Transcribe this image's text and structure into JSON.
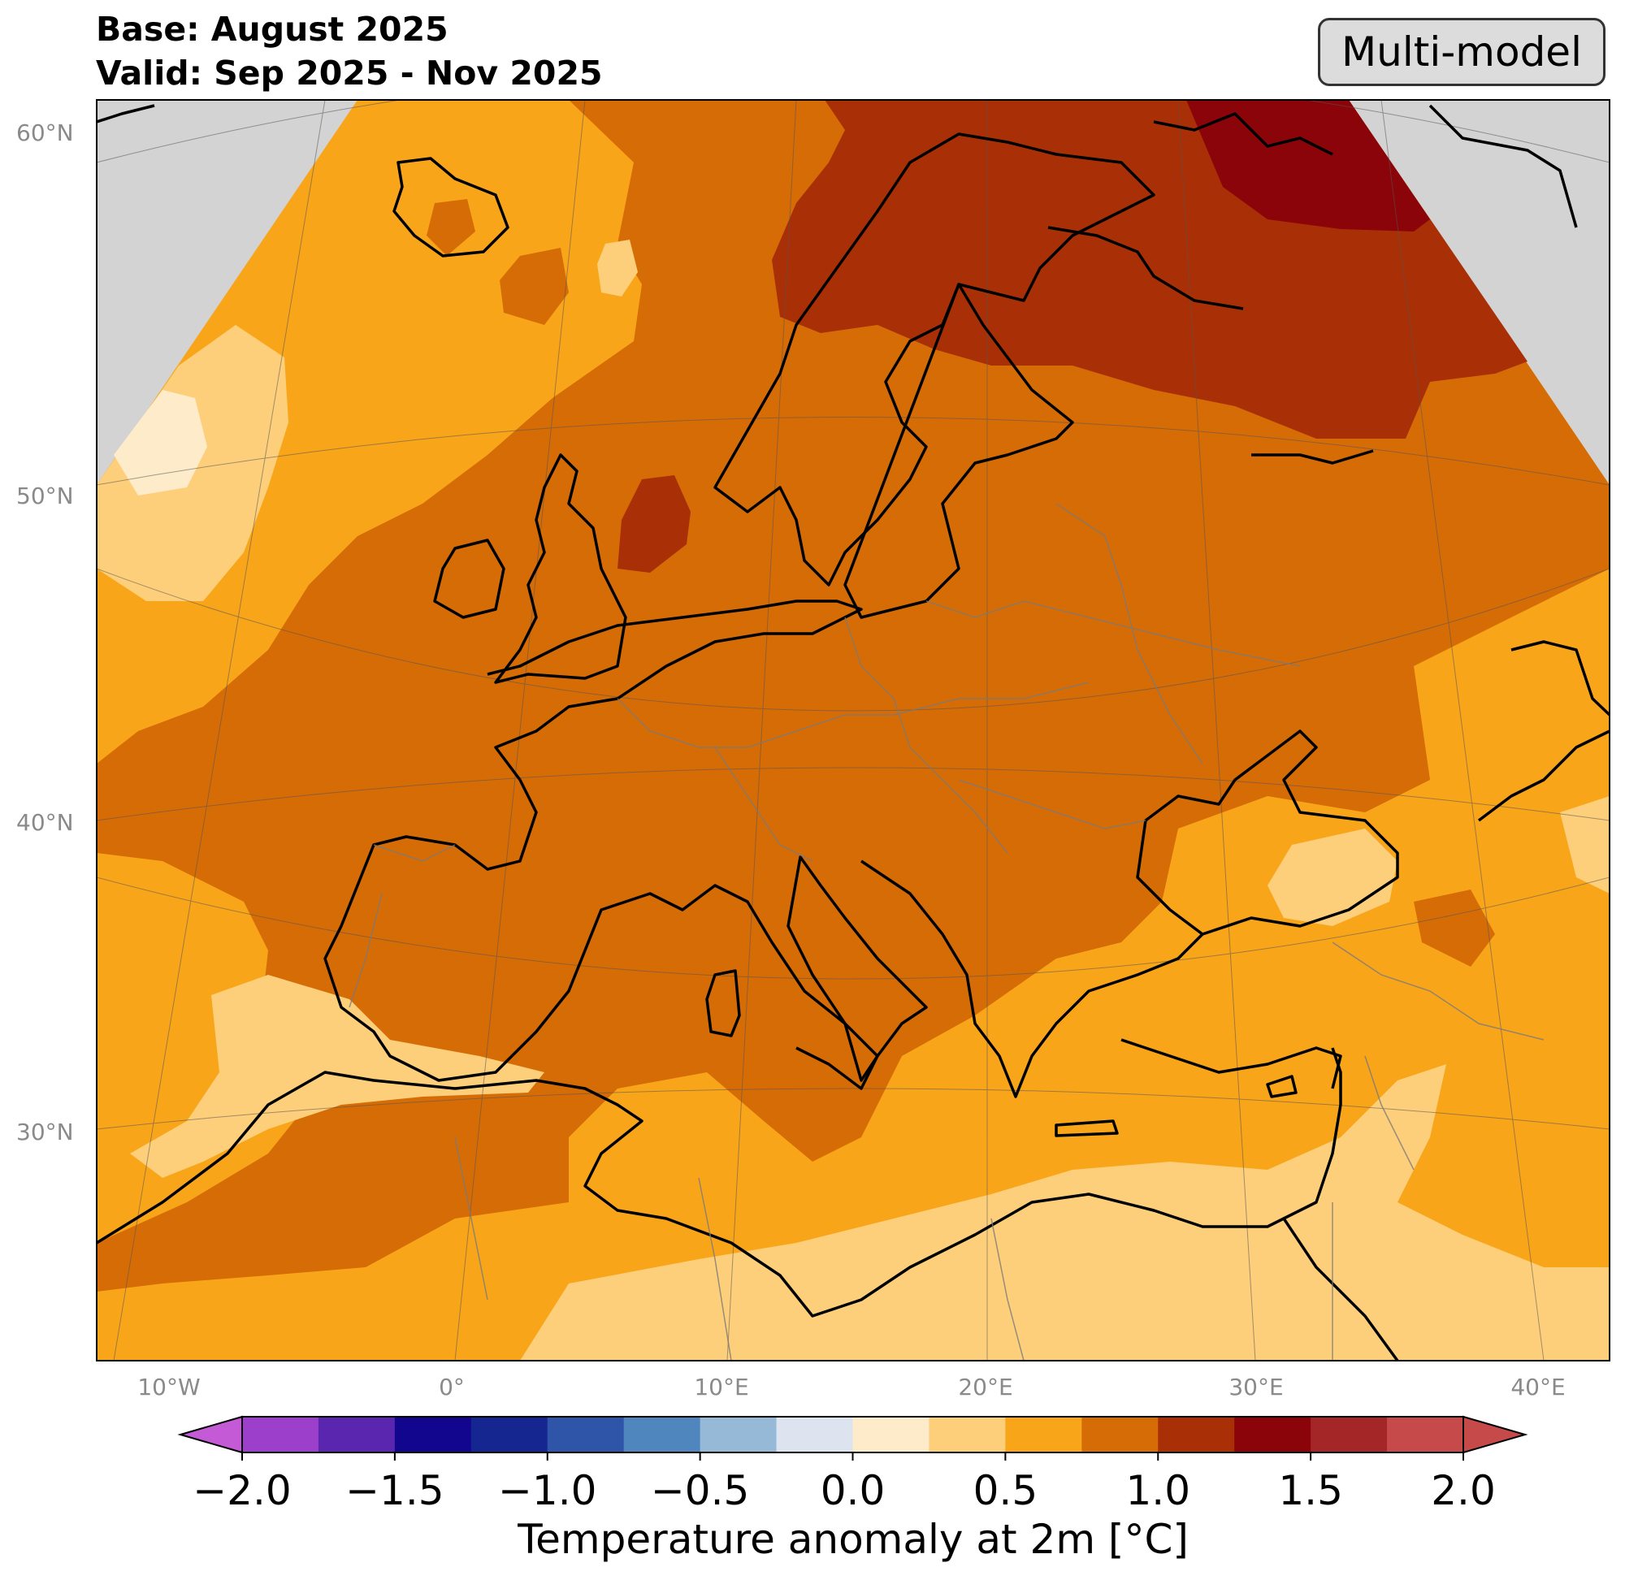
{
  "header": {
    "base": "Base: August 2025",
    "valid": "Valid: Sep 2025 - Nov 2025"
  },
  "badge": "Multi-model",
  "map": {
    "lat_labels": [
      "60°N",
      "50°N",
      "40°N",
      "30°N"
    ],
    "lon_labels": [
      "10°W",
      "0°",
      "10°E",
      "20°E",
      "30°E",
      "40°E"
    ],
    "colors": {
      "outside_domain": "#d3d3d3",
      "anom_0_0.25": "#fdebc9",
      "anom_0.25_0.5": "#fdcf7a",
      "anom_0.5_0.75": "#f9a51a",
      "anom_0.75_1.0": "#d66c06",
      "anom_1.0_1.25": "#a92f06",
      "anom_1.25_1.5": "#8b0409",
      "coastline": "#000000",
      "borders": "#7a7a7a"
    }
  },
  "colorbar": {
    "label": "Temperature anomaly at 2m [°C]",
    "ticks": [
      "−2.0",
      "−1.5",
      "−1.0",
      "−0.5",
      "0.0",
      "0.5",
      "1.0",
      "1.5",
      "2.0"
    ],
    "min": -2.0,
    "max": 2.0,
    "step": 0.25,
    "colors": [
      "#9c3fca",
      "#5a26b0",
      "#12068e",
      "#162690",
      "#2f55a8",
      "#4f86bd",
      "#97b9d8",
      "#dde4ef",
      "#fdebc9",
      "#fdcf7a",
      "#f9a51a",
      "#d66c06",
      "#a92f06",
      "#8b0409",
      "#a52626",
      "#c74a4a"
    ],
    "extend_low_color": "#c45ad6",
    "extend_high_color": "#c74a4a"
  }
}
